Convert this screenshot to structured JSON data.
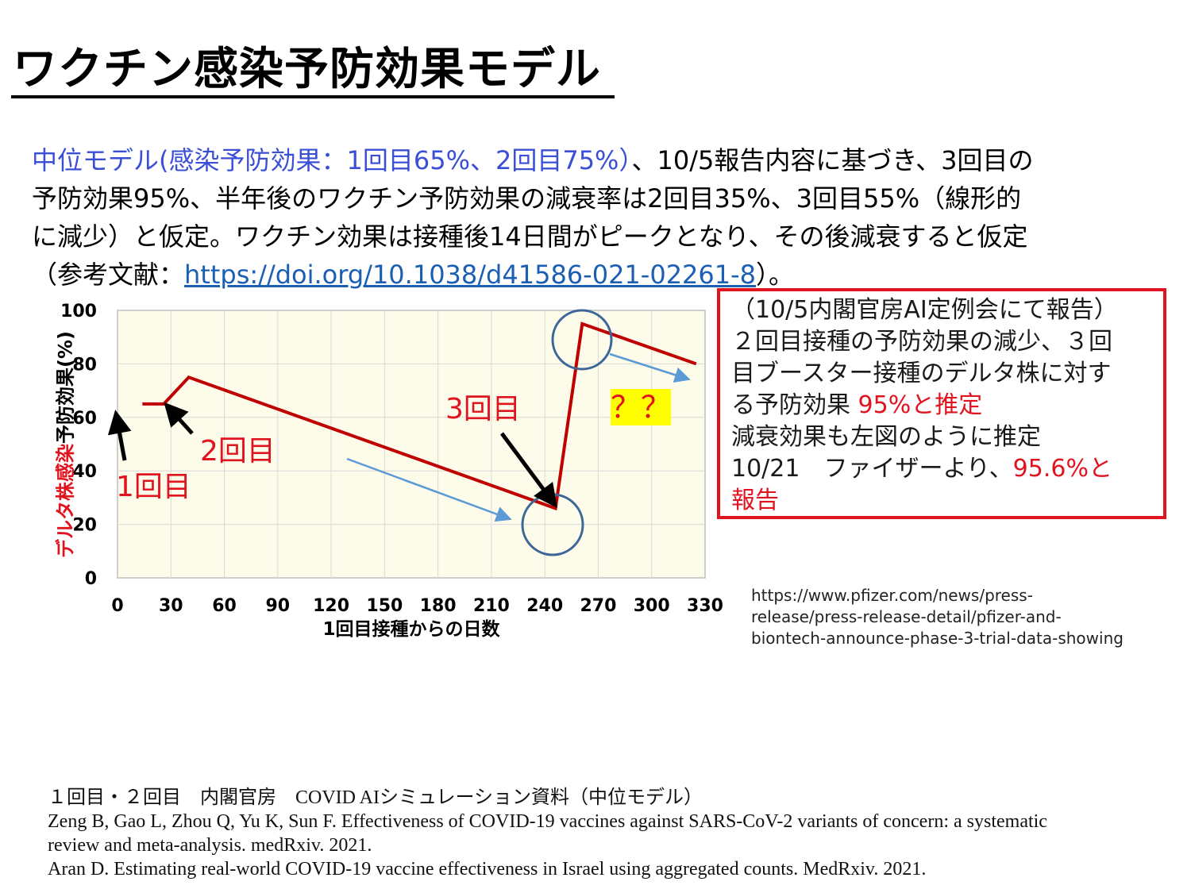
{
  "title": "ワクチン感染予防効果モデル",
  "intro": {
    "blue_part": "中位モデル(感染予防効果：1回目65%、2回目75%）",
    "line1_rest": "、10/5報告内容に基づき、3回目の",
    "line2": "予防効果95%、半年後のワクチン予防効果の減衰率は2回目35%、3回目55%（線形的",
    "line3": "に減少）と仮定。ワクチン効果は接種後14日間がピークとなり、その後減衰すると仮定",
    "line4_prefix": "（参考文献：",
    "link": "https://doi.org/10.1038/d41586-021-02261-8",
    "line4_suffix": "）。"
  },
  "callout": {
    "line1": "（10/5内閣官房AI定例会にて報告）",
    "line2": "２回目接種の予防効果の減少、３回",
    "line3": "目ブースター接種のデルタ株に対す",
    "line4_prefix": "る予防効果 ",
    "line4_red": "95%と推定",
    "line5": "減衰効果も左図のように推定",
    "line6_prefix": "10/21　ファイザーより、",
    "line6_red": "95.6%と",
    "line7_red": "報告"
  },
  "pfizer_url": {
    "line1": "https://www.pfizer.com/news/press-",
    "line2": "release/press-release-detail/pfizer-and-",
    "line3": "biontech-announce-phase-3-trial-data-showing"
  },
  "references": {
    "line1": "１回目・２回目　内閣官房　COVID AIシミュレーション資料（中位モデル）",
    "line2": "Zeng B, Gao L, Zhou Q, Yu K, Sun F. Effectiveness of COVID-19 vaccines against SARS-CoV-2 variants of concern: a systematic",
    "line3": "review and meta-analysis. medRxiv. 2021.",
    "line4": "Aran D. Estimating real-world COVID-19 vaccine effectiveness in Israel using aggregated counts. MedRxiv. 2021."
  },
  "annotations": {
    "dose1": "1回目",
    "dose2": "2回目",
    "dose3": "3回目",
    "question": "？？"
  },
  "chart_data": {
    "type": "line",
    "xlabel": "1回目接種からの日数",
    "ylabel_red": "デルタ株感染",
    "ylabel_black": "予防効果(%)",
    "xlim": [
      0,
      330
    ],
    "ylim": [
      0,
      100
    ],
    "x_ticks": [
      0,
      30,
      60,
      90,
      120,
      150,
      180,
      210,
      240,
      270,
      300,
      330
    ],
    "y_ticks": [
      0,
      20,
      40,
      60,
      80,
      100
    ],
    "grid": true,
    "series": [
      {
        "color": "#c00000",
        "x": [
          14,
          26,
          40,
          246,
          261,
          325
        ],
        "y": [
          65,
          65,
          75,
          26,
          95,
          80
        ]
      }
    ],
    "colors": {
      "line": "#c00000",
      "plot_bg": "#fdfbe9",
      "grid": "#d9d9d9",
      "circle": "#3d6799",
      "trend_arrow": "#5b9bd5",
      "callout_border": "#e0141e",
      "highlight": "#ffff00"
    }
  }
}
